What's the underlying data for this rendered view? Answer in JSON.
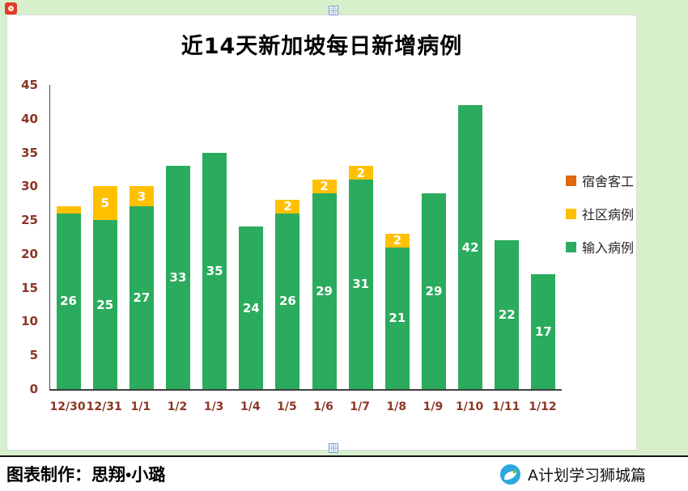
{
  "theme": {
    "page_background": "#d7f0cb",
    "chart_background": "#ffffff",
    "axis_label_color": "#8b3626",
    "bar_label_color": "#ffffff"
  },
  "chart_data": {
    "type": "bar",
    "stacked": true,
    "title": "近14天新加坡每日新增病例",
    "categories": [
      "12/30",
      "12/31",
      "1/1",
      "1/2",
      "1/3",
      "1/4",
      "1/5",
      "1/6",
      "1/7",
      "1/8",
      "1/9",
      "1/10",
      "1/11",
      "1/12"
    ],
    "series": [
      {
        "name": "宿舍客工",
        "color": "#e1670e",
        "values": [
          0,
          0,
          0,
          0,
          0,
          0,
          0,
          0,
          0,
          0,
          0,
          0,
          0,
          0
        ]
      },
      {
        "name": "社区病例",
        "color": "#ffc000",
        "values": [
          1,
          5,
          3,
          0,
          0,
          0,
          2,
          2,
          2,
          2,
          0,
          0,
          0,
          0
        ]
      },
      {
        "name": "输入病例",
        "color": "#2bab5d",
        "values": [
          26,
          25,
          27,
          33,
          35,
          24,
          26,
          29,
          31,
          21,
          29,
          42,
          22,
          17
        ]
      }
    ],
    "totals": [
      27,
      30,
      30,
      33,
      35,
      24,
      28,
      31,
      33,
      23,
      29,
      42,
      22,
      17
    ],
    "ylim": [
      0,
      45
    ],
    "yticks": [
      0,
      5,
      10,
      15,
      20,
      25,
      30,
      35,
      40,
      45
    ],
    "xlabel": "",
    "ylabel": "",
    "grid": false,
    "legend_position": "right"
  },
  "footer": {
    "credit": "图表制作：思翔•小璐",
    "brand": "A计划学习狮城篇"
  }
}
